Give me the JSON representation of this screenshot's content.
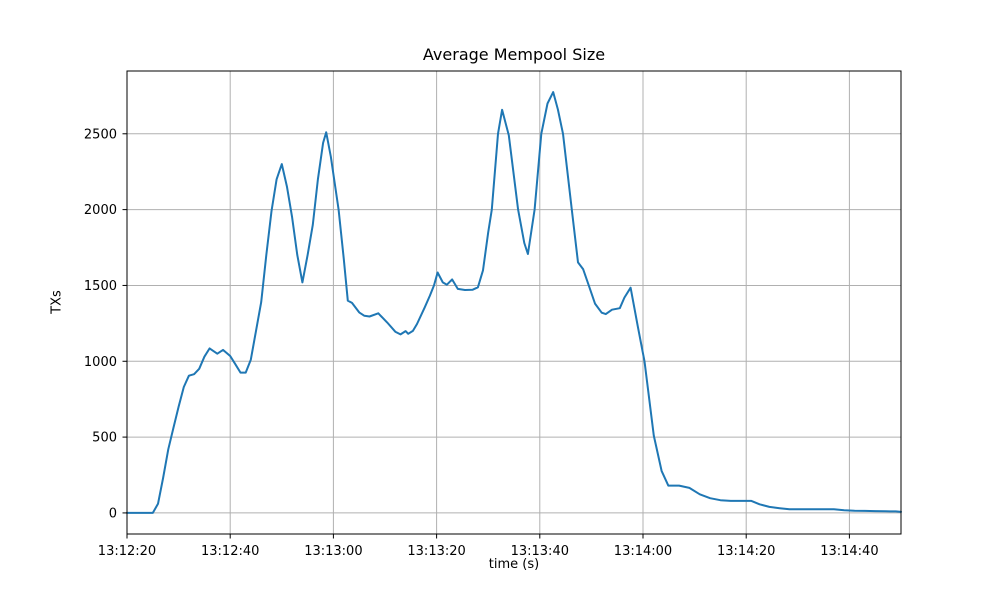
{
  "figure": {
    "title": "Average Mempool Size"
  },
  "chart_data": {
    "type": "line",
    "title": "Average Mempool Size",
    "xlabel": "time (s)",
    "ylabel": "TXs",
    "grid": true,
    "legend": null,
    "x_tick_labels": [
      "13:12:20",
      "13:12:40",
      "13:13:00",
      "13:13:20",
      "13:13:40",
      "13:14:00",
      "13:14:20",
      "13:14:40"
    ],
    "x_tick_seconds": [
      0,
      20,
      40,
      60,
      80,
      100,
      120,
      140
    ],
    "x_start_time": "13:12:20",
    "x_end_time": "13:14:50",
    "xlim_seconds": [
      0,
      150
    ],
    "y_ticks": [
      0,
      500,
      1000,
      1500,
      2000,
      2500
    ],
    "ylim": [
      -139,
      2914
    ],
    "colors": {
      "line": "#1f77b4",
      "grid": "#b0b0b0",
      "spine": "#000000",
      "background": "#ffffff",
      "text": "#000000"
    },
    "series": [
      {
        "name": "average-mempool-size",
        "color": "#1f77b4",
        "points_seconds_txs": [
          [
            0,
            0
          ],
          [
            2,
            0
          ],
          [
            4,
            0
          ],
          [
            5,
            0
          ],
          [
            6,
            60
          ],
          [
            7,
            230
          ],
          [
            8,
            420
          ],
          [
            9,
            560
          ],
          [
            10,
            700
          ],
          [
            11,
            830
          ],
          [
            12,
            905
          ],
          [
            13,
            915
          ],
          [
            14,
            950
          ],
          [
            15,
            1030
          ],
          [
            16,
            1085
          ],
          [
            17.5,
            1050
          ],
          [
            18.6,
            1075
          ],
          [
            20,
            1035
          ],
          [
            21,
            980
          ],
          [
            22,
            925
          ],
          [
            23,
            925
          ],
          [
            24,
            1010
          ],
          [
            25,
            1200
          ],
          [
            26,
            1390
          ],
          [
            27,
            1700
          ],
          [
            28,
            1990
          ],
          [
            29,
            2200
          ],
          [
            30,
            2300
          ],
          [
            31,
            2150
          ],
          [
            32,
            1950
          ],
          [
            33,
            1700
          ],
          [
            34,
            1520
          ],
          [
            35,
            1700
          ],
          [
            36,
            1900
          ],
          [
            37,
            2200
          ],
          [
            38,
            2440
          ],
          [
            38.6,
            2510
          ],
          [
            39.5,
            2350
          ],
          [
            41,
            2000
          ],
          [
            42,
            1680
          ],
          [
            42.8,
            1400
          ],
          [
            43.6,
            1385
          ],
          [
            45,
            1322
          ],
          [
            46,
            1300
          ],
          [
            47,
            1295
          ],
          [
            48.7,
            1316
          ],
          [
            50.4,
            1256
          ],
          [
            52,
            1195
          ],
          [
            53,
            1177
          ],
          [
            54,
            1199
          ],
          [
            54.5,
            1181
          ],
          [
            55.4,
            1200
          ],
          [
            56.2,
            1246
          ],
          [
            57.7,
            1355
          ],
          [
            58.7,
            1433
          ],
          [
            59.5,
            1500
          ],
          [
            60.2,
            1585
          ],
          [
            61.2,
            1520
          ],
          [
            62,
            1505
          ],
          [
            63,
            1540
          ],
          [
            64.1,
            1477
          ],
          [
            65.5,
            1470
          ],
          [
            67,
            1472
          ],
          [
            68,
            1488
          ],
          [
            69,
            1600
          ],
          [
            70,
            1850
          ],
          [
            70.7,
            2000
          ],
          [
            71.9,
            2500
          ],
          [
            72.7,
            2658
          ],
          [
            74,
            2490
          ],
          [
            75.8,
            2000
          ],
          [
            77,
            1780
          ],
          [
            77.7,
            1707
          ],
          [
            79,
            2000
          ],
          [
            80.3,
            2500
          ],
          [
            81.5,
            2700
          ],
          [
            82.6,
            2775
          ],
          [
            83.5,
            2660
          ],
          [
            84.5,
            2500
          ],
          [
            86.2,
            2000
          ],
          [
            87.4,
            1652
          ],
          [
            88.4,
            1608
          ],
          [
            89.4,
            1509
          ],
          [
            90.7,
            1380
          ],
          [
            92,
            1320
          ],
          [
            92.8,
            1311
          ],
          [
            94,
            1340
          ],
          [
            95.5,
            1350
          ],
          [
            96.4,
            1420
          ],
          [
            97.6,
            1485
          ],
          [
            99,
            1230
          ],
          [
            100.3,
            1000
          ],
          [
            102.1,
            510
          ],
          [
            103.6,
            277
          ],
          [
            104.9,
            180
          ],
          [
            107,
            180
          ],
          [
            109,
            165
          ],
          [
            111,
            123
          ],
          [
            113,
            97
          ],
          [
            115,
            84
          ],
          [
            117,
            79
          ],
          [
            119,
            79
          ],
          [
            121,
            79
          ],
          [
            122.6,
            57
          ],
          [
            124.5,
            40
          ],
          [
            126.5,
            31
          ],
          [
            128.4,
            24
          ],
          [
            131,
            24
          ],
          [
            134,
            24
          ],
          [
            137,
            24
          ],
          [
            139,
            18
          ],
          [
            141,
            14
          ],
          [
            143,
            13
          ],
          [
            145,
            12
          ],
          [
            147,
            11
          ],
          [
            149,
            10
          ],
          [
            150,
            7
          ]
        ]
      }
    ]
  }
}
